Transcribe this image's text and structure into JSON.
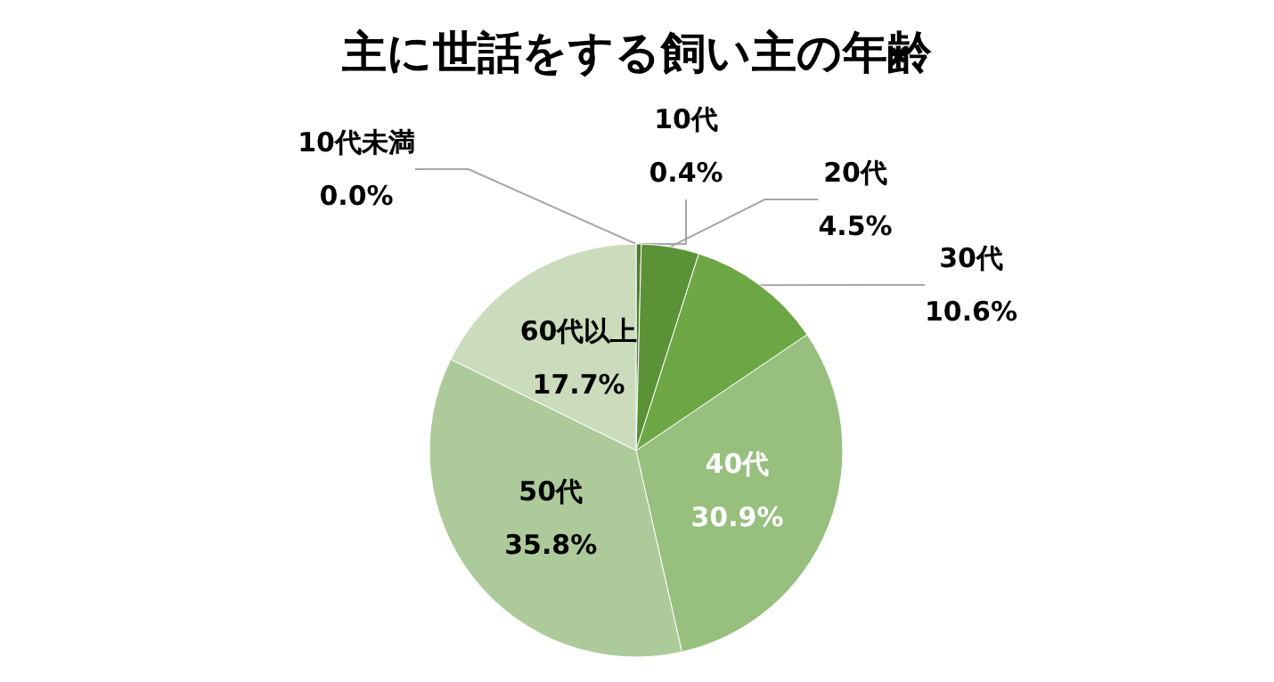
{
  "chart_data": {
    "type": "pie",
    "title": "主に世話をする飼い主の年齢",
    "categories": [
      "10代未満",
      "10代",
      "20代",
      "30代",
      "40代",
      "50代",
      "60代以上"
    ],
    "values": [
      0.0,
      0.4,
      4.5,
      10.6,
      30.9,
      35.8,
      17.7
    ],
    "value_labels": [
      "0.0%",
      "0.4%",
      "4.5%",
      "10.6%",
      "30.9%",
      "35.8%",
      "17.7%"
    ],
    "colors": [
      "#3e6620",
      "#4f7f2b",
      "#5b9237",
      "#6ca744",
      "#97bf7e",
      "#adcb9a",
      "#cbdcbd"
    ],
    "legend": false
  }
}
